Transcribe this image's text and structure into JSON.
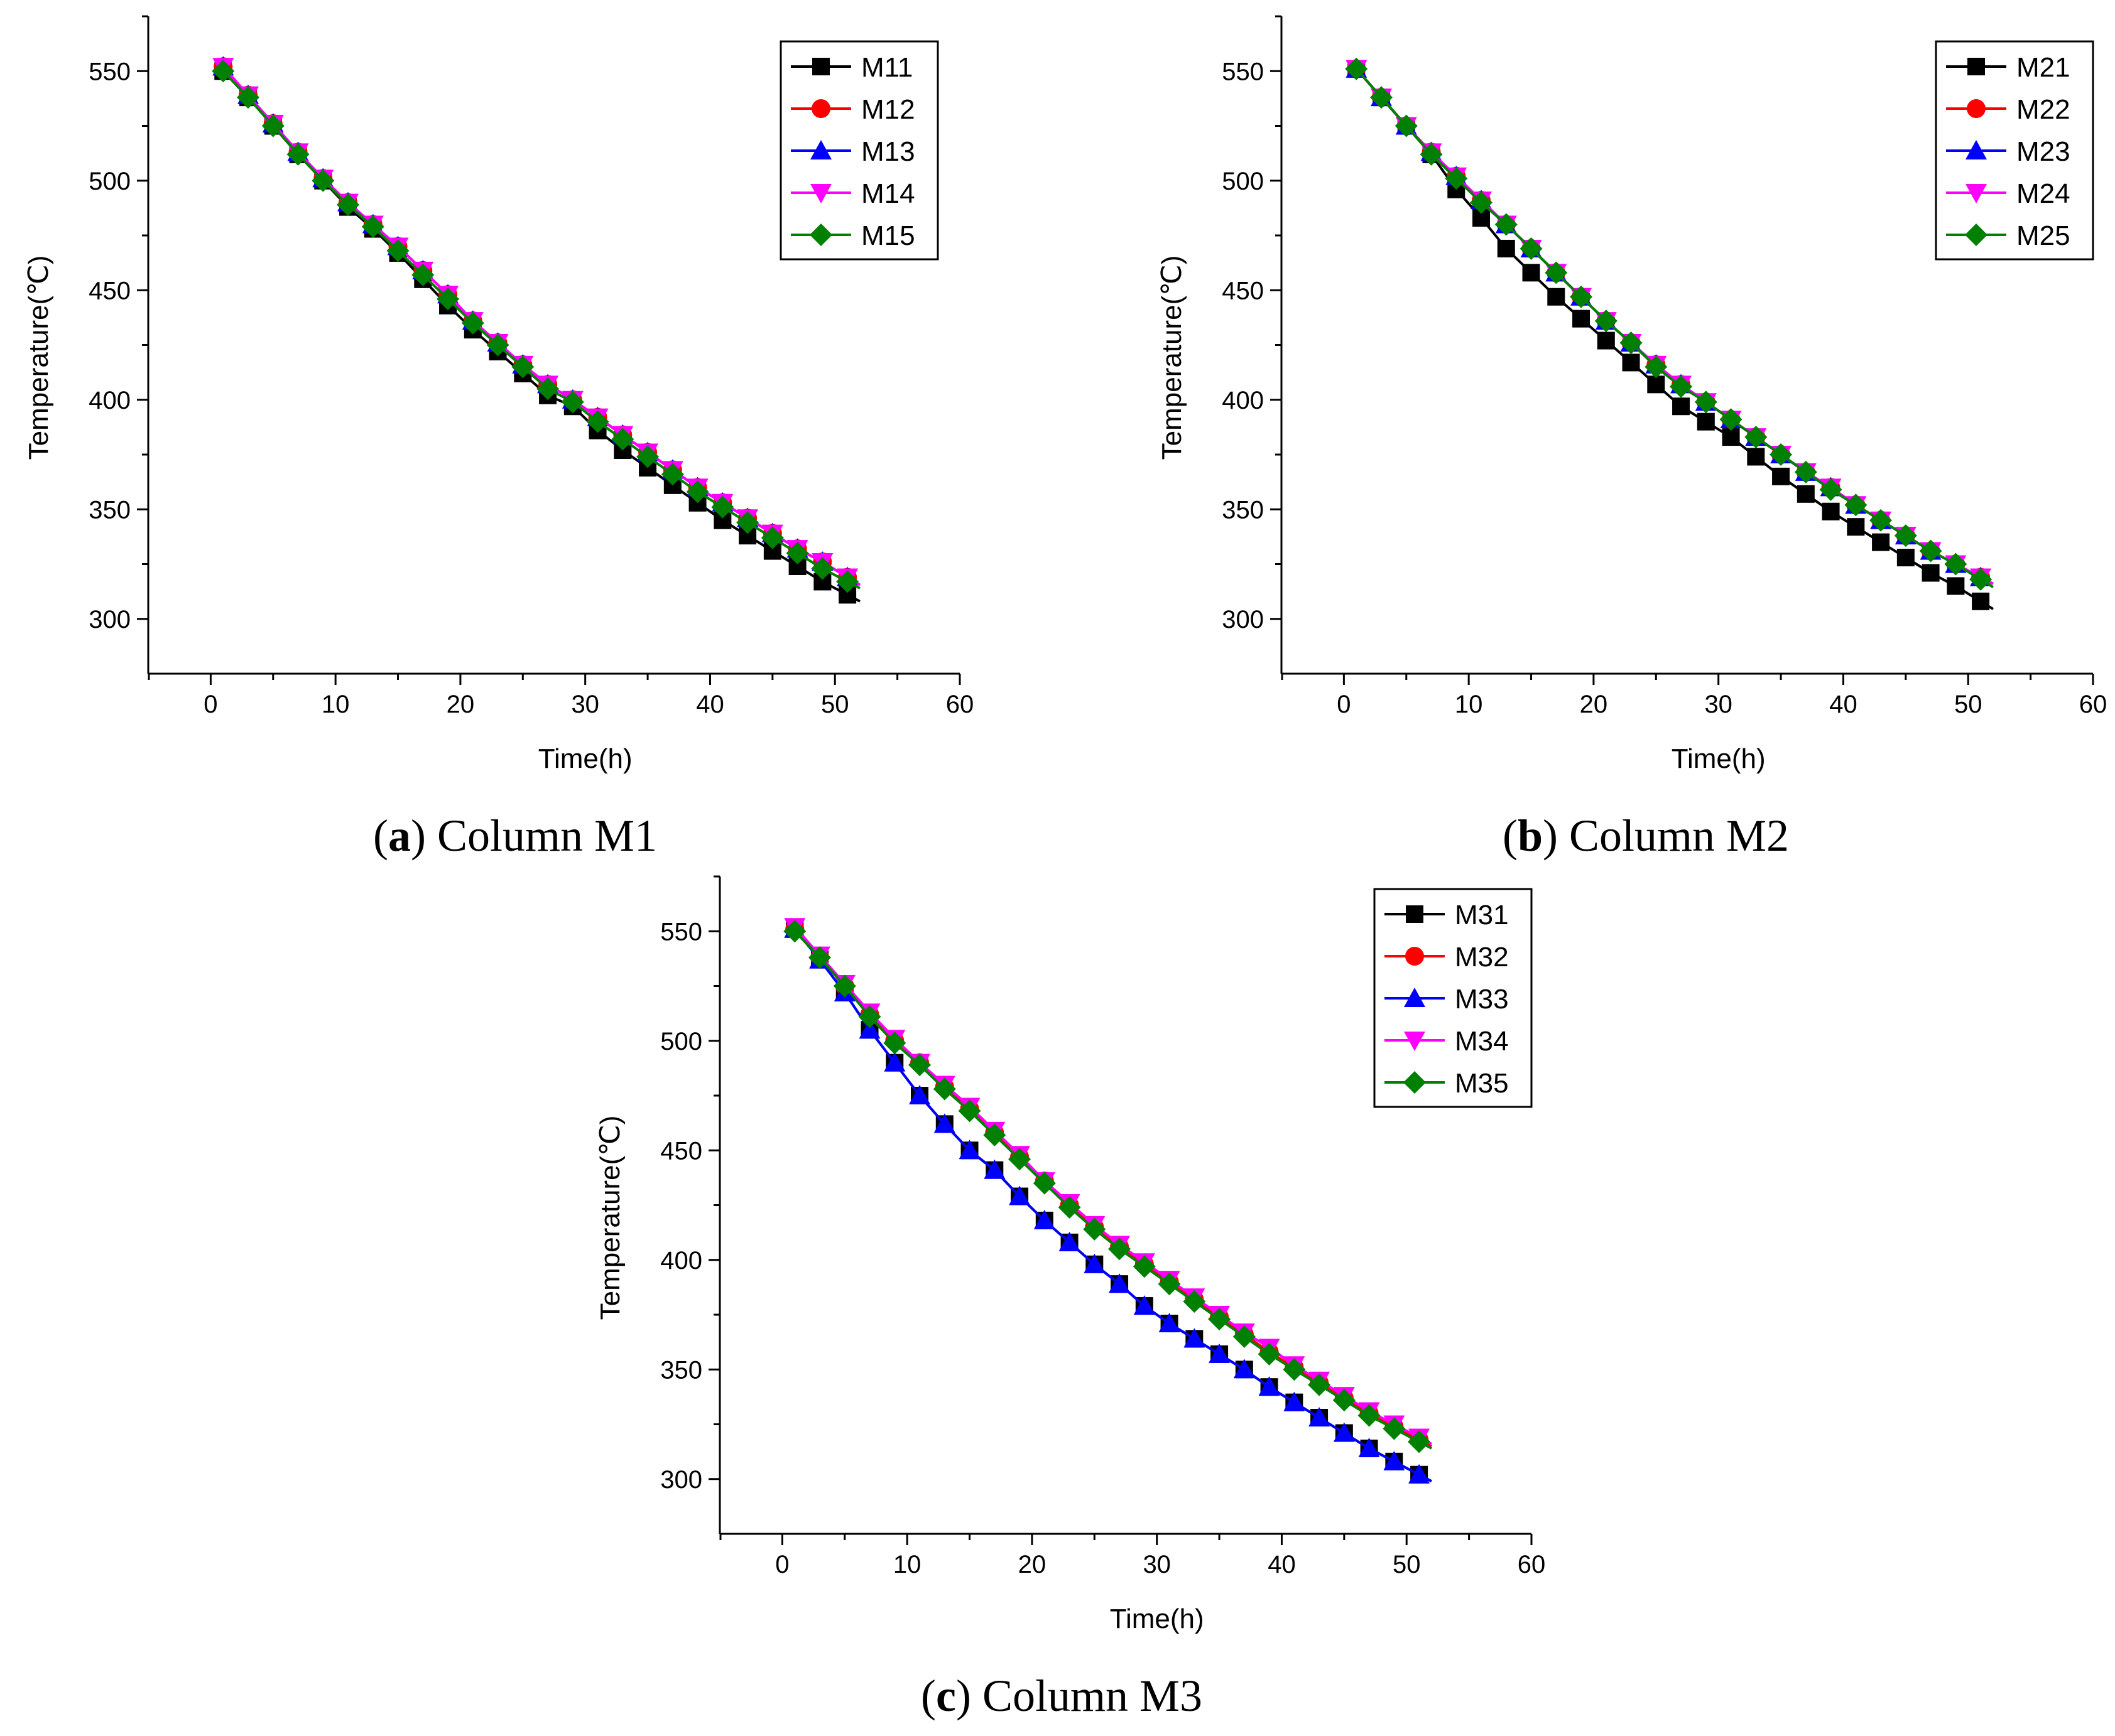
{
  "figure": {
    "captions": [
      {
        "letter": "a",
        "text": "Column M1"
      },
      {
        "letter": "b",
        "text": "Column M2"
      },
      {
        "letter": "c",
        "text": "Column M3"
      }
    ]
  },
  "styles": {
    "colors": [
      "#000000",
      "#ff0000",
      "#0000ff",
      "#ff00ff",
      "#008000"
    ],
    "markers": [
      "square",
      "circle",
      "triangle-up",
      "triangle-down",
      "diamond"
    ]
  },
  "chart_data": [
    {
      "type": "line",
      "title": "Column M1",
      "xlabel": "Time(h)",
      "ylabel": "Temperature(℃)",
      "xlim": [
        -5,
        60
      ],
      "ylim": [
        275,
        575
      ],
      "xticks": [
        0,
        10,
        20,
        30,
        40,
        50,
        60
      ],
      "yticks": [
        300,
        350,
        400,
        450,
        500,
        550
      ],
      "grid": false,
      "legend": "top-right",
      "x": [
        1,
        3,
        5,
        7,
        9,
        11,
        13,
        15,
        17,
        19,
        21,
        23,
        25,
        27,
        29,
        31,
        33,
        35,
        37,
        39,
        41,
        43,
        45,
        47,
        49,
        51
      ],
      "series": [
        {
          "name": "M11",
          "values": [
            550,
            538,
            525,
            512,
            500,
            488,
            478,
            467,
            455,
            443,
            432,
            422,
            412,
            402,
            397,
            386,
            377,
            369,
            361,
            353,
            345,
            338,
            331,
            324,
            317,
            311
          ]
        },
        {
          "name": "M12",
          "values": [
            552,
            539,
            526,
            513,
            501,
            490,
            480,
            470,
            459,
            448,
            436,
            426,
            416,
            407,
            400,
            392,
            384,
            376,
            368,
            360,
            353,
            346,
            339,
            332,
            326,
            319
          ]
        },
        {
          "name": "M13",
          "values": [
            552,
            539,
            526,
            513,
            501,
            490,
            480,
            470,
            459,
            448,
            436,
            426,
            416,
            407,
            400,
            392,
            384,
            376,
            368,
            360,
            353,
            346,
            339,
            332,
            326,
            319
          ]
        },
        {
          "name": "M14",
          "values": [
            552,
            539,
            526,
            513,
            501,
            490,
            480,
            470,
            459,
            448,
            436,
            426,
            416,
            407,
            400,
            392,
            384,
            376,
            368,
            360,
            353,
            346,
            339,
            332,
            326,
            319
          ]
        },
        {
          "name": "M15",
          "values": [
            550,
            538,
            525,
            512,
            500,
            489,
            479,
            468,
            457,
            446,
            435,
            425,
            415,
            405,
            399,
            390,
            382,
            374,
            366,
            358,
            351,
            344,
            337,
            330,
            323,
            317
          ]
        }
      ]
    },
    {
      "type": "line",
      "title": "Column M2",
      "xlabel": "Time(h)",
      "ylabel": "Temperature(℃)",
      "xlim": [
        -5,
        60
      ],
      "ylim": [
        275,
        575
      ],
      "xticks": [
        0,
        10,
        20,
        30,
        40,
        50,
        60
      ],
      "yticks": [
        300,
        350,
        400,
        450,
        500,
        550
      ],
      "grid": false,
      "legend": "top-right",
      "x": [
        1,
        3,
        5,
        7,
        9,
        11,
        13,
        15,
        17,
        19,
        21,
        23,
        25,
        27,
        29,
        31,
        33,
        35,
        37,
        39,
        41,
        43,
        45,
        47,
        49,
        51
      ],
      "series": [
        {
          "name": "M21",
          "values": [
            551,
            538,
            525,
            512,
            496,
            483,
            469,
            458,
            447,
            437,
            427,
            417,
            407,
            397,
            390,
            383,
            374,
            365,
            357,
            349,
            342,
            335,
            328,
            321,
            315,
            308
          ]
        },
        {
          "name": "M22",
          "values": [
            551,
            538,
            525,
            513,
            502,
            491,
            480,
            469,
            458,
            447,
            436,
            426,
            416,
            407,
            399,
            391,
            383,
            375,
            367,
            360,
            352,
            345,
            338,
            331,
            325,
            319
          ]
        },
        {
          "name": "M23",
          "values": [
            551,
            538,
            525,
            513,
            502,
            491,
            480,
            469,
            458,
            447,
            436,
            426,
            416,
            407,
            399,
            391,
            383,
            375,
            367,
            360,
            352,
            345,
            338,
            331,
            325,
            319
          ]
        },
        {
          "name": "M24",
          "values": [
            551,
            538,
            525,
            513,
            502,
            491,
            480,
            469,
            458,
            447,
            436,
            426,
            416,
            407,
            399,
            391,
            383,
            375,
            367,
            360,
            352,
            345,
            338,
            331,
            325,
            319
          ]
        },
        {
          "name": "M25",
          "values": [
            551,
            538,
            525,
            512,
            501,
            490,
            480,
            469,
            458,
            447,
            436,
            426,
            415,
            406,
            399,
            391,
            383,
            375,
            367,
            359,
            352,
            345,
            338,
            331,
            325,
            318
          ]
        }
      ]
    },
    {
      "type": "line",
      "title": "Column M3",
      "xlabel": "Time(h)",
      "ylabel": "Temperature(℃)",
      "xlim": [
        -5,
        60
      ],
      "ylim": [
        275,
        575
      ],
      "xticks": [
        0,
        10,
        20,
        30,
        40,
        50,
        60
      ],
      "yticks": [
        300,
        350,
        400,
        450,
        500,
        550
      ],
      "grid": false,
      "legend": "top-right",
      "x": [
        1,
        3,
        5,
        7,
        9,
        11,
        13,
        15,
        17,
        19,
        21,
        23,
        25,
        27,
        29,
        31,
        33,
        35,
        37,
        39,
        41,
        43,
        45,
        47,
        49,
        51
      ],
      "series": [
        {
          "name": "M31",
          "values": [
            551,
            537,
            522,
            505,
            490,
            475,
            462,
            450,
            441,
            429,
            418,
            408,
            398,
            389,
            379,
            371,
            364,
            357,
            350,
            342,
            335,
            328,
            321,
            314,
            308,
            302
          ]
        },
        {
          "name": "M32",
          "values": [
            551,
            538,
            525,
            512,
            500,
            490,
            479,
            469,
            458,
            447,
            436,
            425,
            415,
            406,
            398,
            390,
            382,
            374,
            366,
            358,
            351,
            344,
            337,
            330,
            324,
            318
          ]
        },
        {
          "name": "M33",
          "values": [
            551,
            537,
            522,
            505,
            490,
            475,
            462,
            450,
            441,
            429,
            418,
            408,
            398,
            389,
            379,
            371,
            364,
            357,
            350,
            342,
            335,
            328,
            321,
            314,
            308,
            302
          ]
        },
        {
          "name": "M34",
          "values": [
            552,
            539,
            526,
            513,
            501,
            490,
            480,
            470,
            459,
            448,
            436,
            426,
            416,
            407,
            399,
            391,
            383,
            375,
            367,
            360,
            352,
            345,
            338,
            331,
            325,
            319
          ]
        },
        {
          "name": "M35",
          "values": [
            550,
            538,
            525,
            511,
            499,
            489,
            478,
            468,
            457,
            446,
            435,
            424,
            414,
            405,
            397,
            389,
            381,
            373,
            365,
            357,
            350,
            343,
            336,
            329,
            323,
            317
          ]
        }
      ]
    }
  ]
}
